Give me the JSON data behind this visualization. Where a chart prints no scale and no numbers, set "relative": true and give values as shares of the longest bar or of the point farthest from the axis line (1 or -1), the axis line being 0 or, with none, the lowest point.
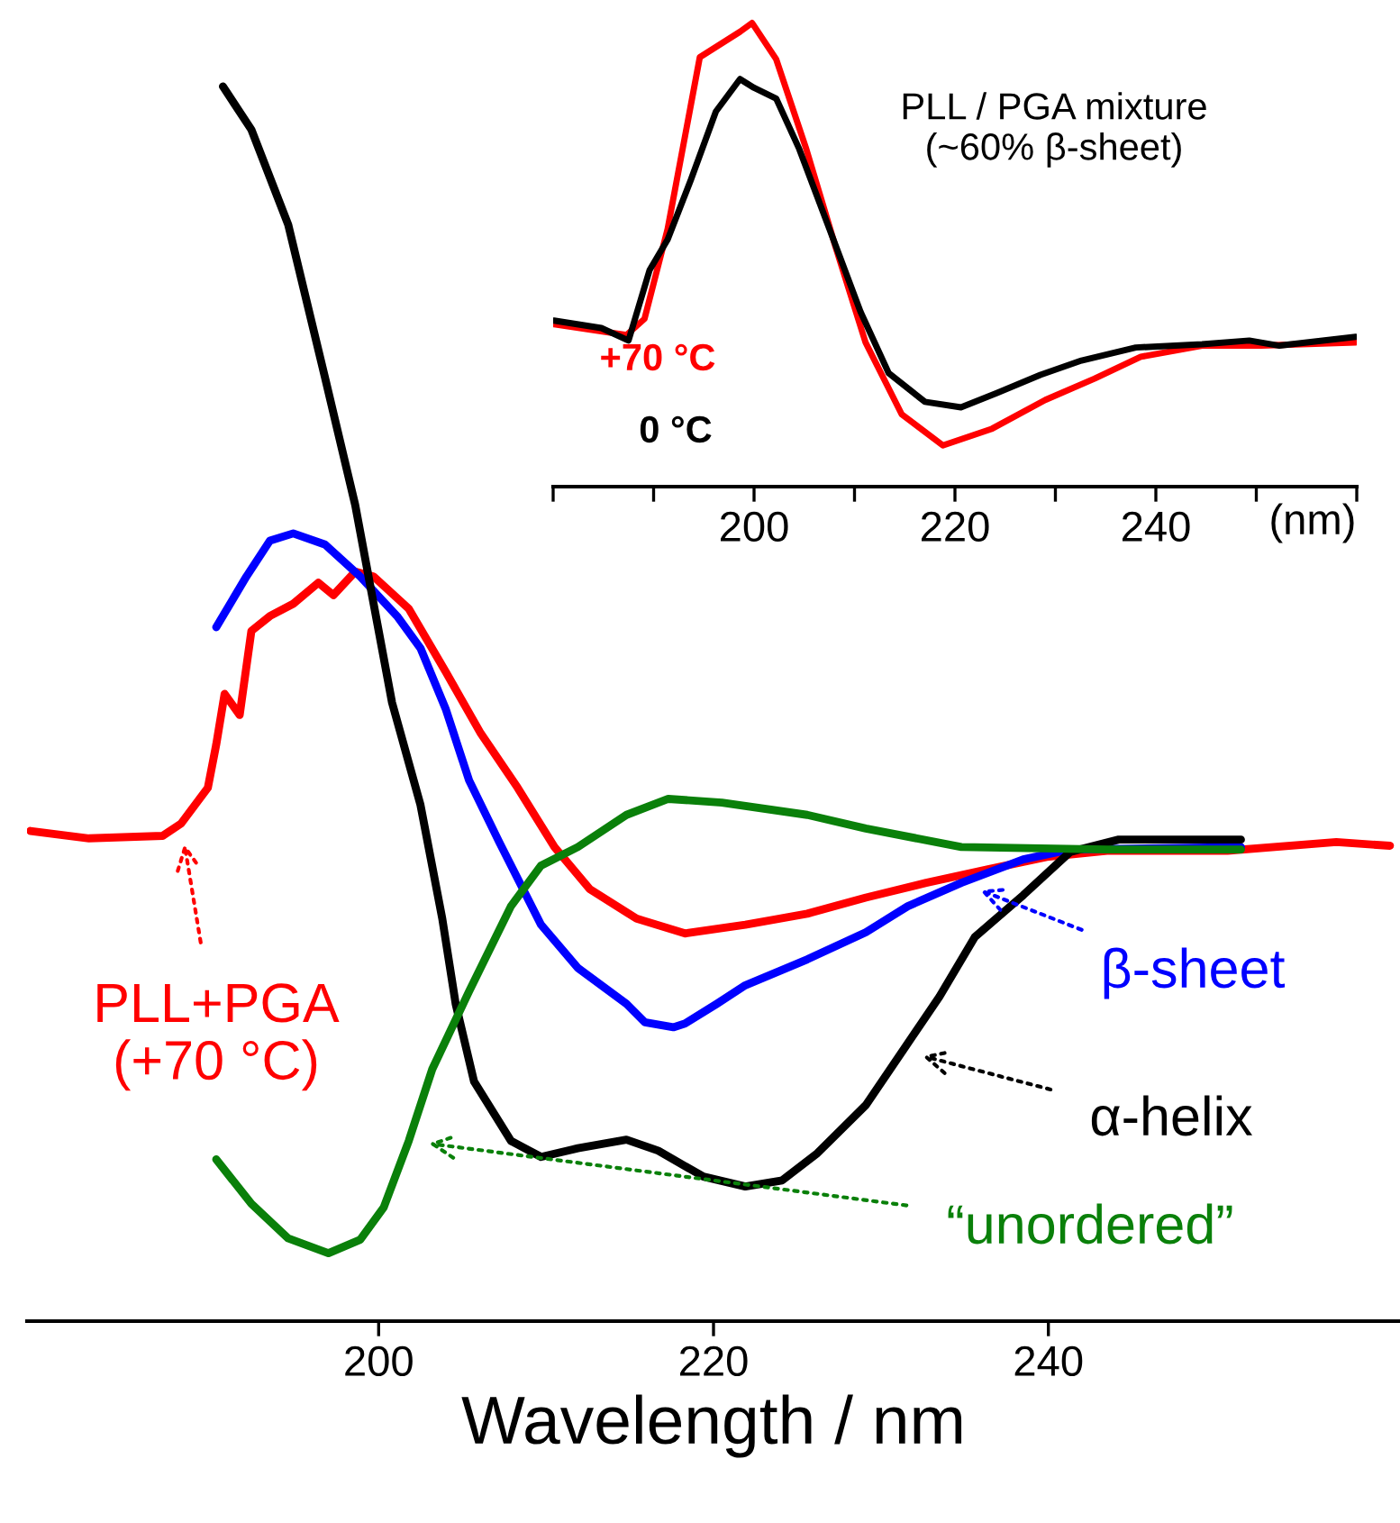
{
  "chart_data": [
    {
      "type": "line",
      "relative": true,
      "xlabel": "Wavelength / nm",
      "xlim": [
        179,
        261
      ],
      "xticks": [
        200,
        220,
        240
      ],
      "tick_labels": "x",
      "series": [
        {
          "name": "PLL+PGA\n(+70 °C)",
          "color": "#ff0000",
          "x": [
            179.2,
            182.7,
            187.1,
            188.2,
            189.8,
            190.3,
            190.8,
            191.7,
            192.4,
            193.5,
            194.9,
            196.4,
            197.3,
            198.6,
            199.7,
            201.8,
            204.0,
            206.1,
            208.3,
            210.5,
            212.6,
            215.4,
            218.3,
            221.9,
            225.6,
            229.1,
            232.7,
            236.4,
            239.9,
            243.5,
            250.7,
            257.2,
            260.4
          ],
          "values": [
            0.397,
            0.391,
            0.393,
            0.403,
            0.432,
            0.467,
            0.508,
            0.491,
            0.559,
            0.571,
            0.581,
            0.598,
            0.588,
            0.607,
            0.603,
            0.577,
            0.526,
            0.476,
            0.432,
            0.384,
            0.35,
            0.326,
            0.314,
            0.321,
            0.33,
            0.343,
            0.355,
            0.366,
            0.376,
            0.381,
            0.381,
            0.388,
            0.385
          ]
        },
        {
          "name": "β-sheet",
          "color": "#0000ff",
          "x": [
            190.3,
            192.1,
            193.5,
            194.9,
            196.8,
            198.9,
            201.1,
            202.5,
            204.0,
            205.4,
            207.2,
            209.7,
            211.9,
            214.8,
            215.9,
            217.6,
            218.3,
            220.2,
            221.9,
            225.6,
            229.1,
            231.6,
            234.8,
            238.5,
            241.3,
            251.5
          ],
          "values": [
            0.562,
            0.603,
            0.632,
            0.638,
            0.629,
            0.603,
            0.571,
            0.545,
            0.496,
            0.438,
            0.388,
            0.321,
            0.286,
            0.257,
            0.242,
            0.238,
            0.241,
            0.257,
            0.272,
            0.293,
            0.315,
            0.336,
            0.355,
            0.374,
            0.382,
            0.384
          ]
        },
        {
          "name": "α-helix",
          "color": "#000000",
          "x": [
            190.7,
            192.4,
            194.6,
            196.8,
            198.6,
            200.8,
            202.5,
            203.8,
            204.6,
            205.7,
            207.9,
            209.7,
            211.9,
            214.8,
            216.7,
            219.4,
            221.9,
            224.1,
            226.2,
            229.1,
            231.3,
            233.5,
            235.6,
            238.5,
            241.3,
            244.2,
            251.5
          ],
          "values": [
            1.0,
            0.965,
            0.888,
            0.764,
            0.661,
            0.501,
            0.418,
            0.326,
            0.257,
            0.194,
            0.146,
            0.133,
            0.14,
            0.147,
            0.138,
            0.117,
            0.109,
            0.114,
            0.136,
            0.175,
            0.219,
            0.263,
            0.311,
            0.345,
            0.38,
            0.39,
            0.39
          ]
        },
        {
          "name": "“unordered”",
          "color": "#0a800a",
          "x": [
            190.3,
            192.4,
            194.6,
            197.0,
            198.9,
            200.3,
            201.8,
            203.2,
            205.4,
            207.9,
            209.7,
            211.9,
            214.8,
            217.3,
            220.5,
            225.6,
            229.1,
            234.8,
            243.5,
            251.5
          ],
          "values": [
            0.131,
            0.095,
            0.067,
            0.055,
            0.066,
            0.092,
            0.146,
            0.204,
            0.267,
            0.336,
            0.369,
            0.384,
            0.41,
            0.423,
            0.42,
            0.41,
            0.399,
            0.384,
            0.382,
            0.382
          ]
        }
      ]
    },
    {
      "type": "line",
      "relative": true,
      "title": "PLL / PGA mixture\n(~60% β-sheet)",
      "xlabel": "(nm)",
      "xlim": [
        180,
        260
      ],
      "xticks": [
        {
          "value": 180,
          "label": null
        },
        {
          "value": 190,
          "label": null
        },
        200,
        {
          "value": 210,
          "label": null
        },
        220,
        {
          "value": 230,
          "label": null
        },
        240,
        {
          "value": 250,
          "label": null
        },
        {
          "value": 260,
          "label": null
        }
      ],
      "tick_labels": "x",
      "series": [
        {
          "name": "+70 °C",
          "color": "#ff0000",
          "x": [
            180.1,
            187.3,
            189.1,
            191.4,
            194.6,
            198.6,
            199.8,
            202.2,
            205.2,
            208.1,
            211.1,
            214.7,
            218.8,
            223.7,
            229.0,
            233.9,
            238.5,
            244.6,
            250.5,
            259.9
          ],
          "values": [
            0.35,
            0.327,
            0.362,
            0.556,
            0.926,
            0.981,
            1.0,
            0.922,
            0.728,
            0.518,
            0.311,
            0.156,
            0.089,
            0.125,
            0.187,
            0.233,
            0.28,
            0.304,
            0.304,
            0.311
          ]
        },
        {
          "name": "0 °C",
          "color": "#000000",
          "x": [
            180.1,
            184.8,
            187.5,
            189.6,
            191.4,
            193.7,
            196.2,
            198.6,
            200.0,
            202.2,
            204.5,
            207.5,
            210.6,
            213.4,
            217.0,
            220.6,
            224.2,
            228.5,
            232.6,
            238.0,
            244.6,
            249.3,
            252.3,
            259.9
          ],
          "values": [
            0.358,
            0.342,
            0.315,
            0.467,
            0.533,
            0.661,
            0.809,
            0.879,
            0.86,
            0.837,
            0.728,
            0.556,
            0.377,
            0.245,
            0.183,
            0.171,
            0.202,
            0.241,
            0.272,
            0.3,
            0.307,
            0.315,
            0.304,
            0.323
          ]
        }
      ]
    }
  ]
}
